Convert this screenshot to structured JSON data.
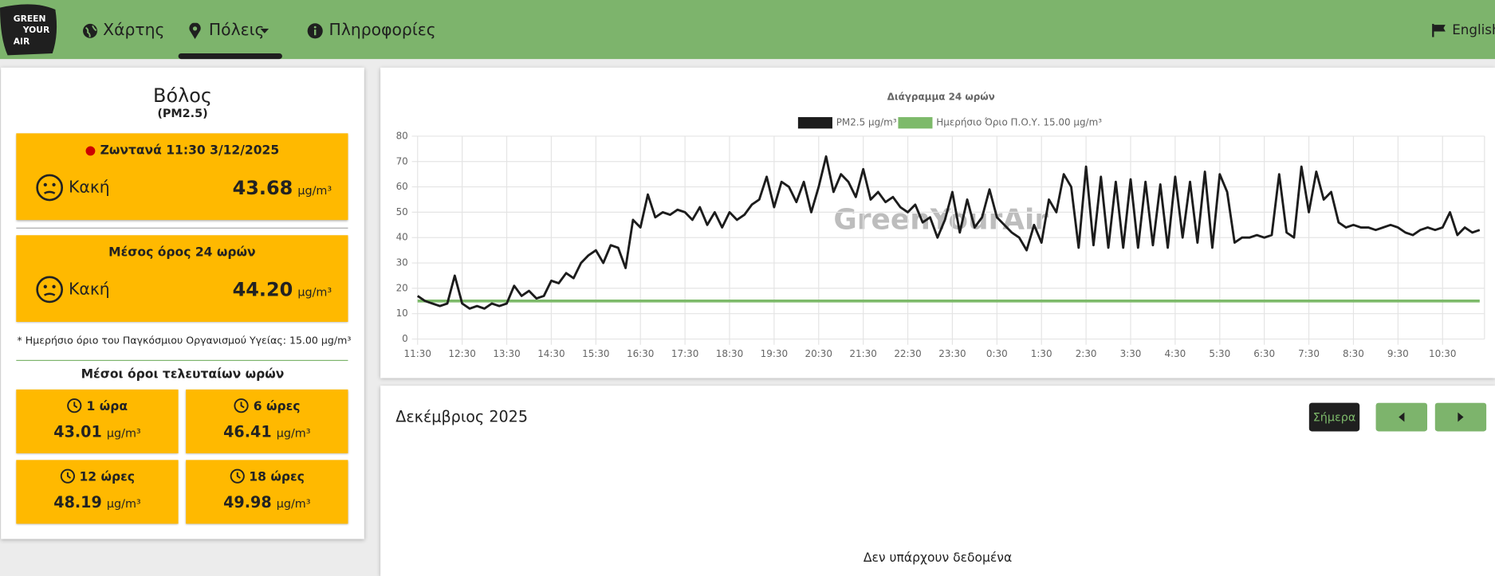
{
  "nav": {
    "logo": [
      "GREEN",
      "YOUR",
      "AIR"
    ],
    "items": [
      "Χάρτης",
      "Πόλεις",
      "Πληροφορίες"
    ],
    "language": "English"
  },
  "station": {
    "city": "Βόλος",
    "pollutant": "(PM2.5)",
    "unit": "μg/m³",
    "live": {
      "label": "Ζωντανά 11:30 3/12/2025",
      "status": "Κακή",
      "value": "43.68"
    },
    "average": {
      "label": "Μέσος όρος 24 ωρών",
      "status": "Κακή",
      "value": "44.20"
    },
    "note": "* Ημερήσιο όριο του Παγκόσμιου Οργανισμού Υγείας: 15.00 μg/m³",
    "recent_title": "Μέσοι όροι τελευταίων ωρών",
    "recent": [
      {
        "label": "1 ώρα",
        "value": "43.01"
      },
      {
        "label": "6 ώρες",
        "value": "46.41"
      },
      {
        "label": "12 ώρες",
        "value": "48.19"
      },
      {
        "label": "18 ώρες",
        "value": "49.98"
      }
    ]
  },
  "calendar": {
    "title": "Δεκέμβριος 2025",
    "today": "Σήμερα",
    "empty": "Δεν υπάρχουν δεδομένα"
  },
  "chart_data": {
    "type": "line",
    "title": "Διάγραμμα 24 ωρών",
    "watermark": "GreenYourAir",
    "categories": [
      "11:30",
      null,
      null,
      null,
      null,
      null,
      "12:30",
      null,
      null,
      null,
      null,
      null,
      "13:30",
      null,
      null,
      null,
      null,
      null,
      "14:30",
      null,
      null,
      null,
      null,
      null,
      "15:30",
      null,
      null,
      null,
      null,
      null,
      "16:30",
      null,
      null,
      null,
      null,
      null,
      "17:30",
      null,
      null,
      null,
      null,
      null,
      "18:30",
      null,
      null,
      null,
      null,
      null,
      "19:30",
      null,
      null,
      null,
      null,
      null,
      "20:30",
      null,
      null,
      null,
      null,
      null,
      "21:30",
      null,
      null,
      null,
      null,
      null,
      "22:30",
      null,
      null,
      null,
      null,
      null,
      "23:30",
      null,
      null,
      null,
      null,
      null,
      "0:30",
      null,
      null,
      null,
      null,
      null,
      "1:30",
      null,
      null,
      null,
      null,
      null,
      "2:30",
      null,
      null,
      null,
      null,
      null,
      "3:30",
      null,
      null,
      null,
      null,
      null,
      "4:30",
      null,
      null,
      null,
      null,
      null,
      "5:30",
      null,
      null,
      null,
      null,
      null,
      "6:30",
      null,
      null,
      null,
      null,
      null,
      "7:30",
      null,
      null,
      null,
      null,
      null,
      "8:30",
      null,
      null,
      null,
      null,
      null,
      "9:30",
      null,
      null,
      null,
      null,
      null,
      "10:30",
      null,
      null,
      null,
      null,
      null
    ],
    "series": [
      {
        "name": "PM2.5 μg/m³",
        "color": "#1c1c1c",
        "values": [
          17,
          15,
          14,
          13,
          14,
          25,
          14,
          12,
          13,
          12,
          14,
          13,
          14,
          21,
          17,
          19,
          16,
          17,
          23,
          22,
          26,
          24,
          30,
          33,
          35,
          30,
          37,
          36,
          28,
          47,
          44,
          57,
          48,
          50,
          49,
          51,
          50,
          47,
          52,
          45,
          50,
          44,
          50,
          47,
          49,
          53,
          55,
          64,
          52,
          62,
          60,
          54,
          62,
          50,
          60,
          72,
          58,
          65,
          62,
          56,
          67,
          55,
          58,
          54,
          56,
          52,
          50,
          53,
          46,
          48,
          40,
          47,
          58,
          42,
          55,
          44,
          48,
          59,
          48,
          45,
          42,
          40,
          35,
          45,
          38,
          55,
          50,
          65,
          60,
          36,
          68,
          37,
          64,
          36,
          62,
          36,
          63,
          36,
          62,
          37,
          61,
          36,
          64,
          40,
          62,
          38,
          66,
          36,
          65,
          58,
          38,
          40,
          40,
          41,
          40,
          41,
          65,
          42,
          40,
          68,
          50,
          66,
          55,
          58,
          46,
          44,
          45,
          44,
          44,
          43,
          44,
          45,
          44,
          42,
          41,
          43,
          44,
          43,
          44,
          50,
          41,
          44,
          42,
          43
        ]
      },
      {
        "name": "Ημερήσιο Όριο Π.Ο.Υ. 15.00 μg/m³",
        "color": "#7dba6a",
        "values": [
          15,
          15,
          15,
          15,
          15,
          15,
          15,
          15,
          15,
          15,
          15,
          15,
          15,
          15,
          15,
          15,
          15,
          15,
          15,
          15,
          15,
          15,
          15,
          15,
          15,
          15,
          15,
          15,
          15,
          15,
          15,
          15,
          15,
          15,
          15,
          15,
          15,
          15,
          15,
          15,
          15,
          15,
          15,
          15,
          15,
          15,
          15,
          15,
          15,
          15,
          15,
          15,
          15,
          15,
          15,
          15,
          15,
          15,
          15,
          15,
          15,
          15,
          15,
          15,
          15,
          15,
          15,
          15,
          15,
          15,
          15,
          15,
          15,
          15,
          15,
          15,
          15,
          15,
          15,
          15,
          15,
          15,
          15,
          15,
          15,
          15,
          15,
          15,
          15,
          15,
          15,
          15,
          15,
          15,
          15,
          15,
          15,
          15,
          15,
          15,
          15,
          15,
          15,
          15,
          15,
          15,
          15,
          15,
          15,
          15,
          15,
          15,
          15,
          15,
          15,
          15,
          15,
          15,
          15,
          15,
          15,
          15,
          15,
          15,
          15,
          15,
          15,
          15,
          15,
          15,
          15,
          15,
          15,
          15,
          15,
          15,
          15,
          15,
          15,
          15,
          15,
          15,
          15,
          15
        ]
      }
    ],
    "ylim": [
      0,
      80
    ],
    "yticks": [
      0,
      10,
      20,
      30,
      40,
      50,
      60,
      70,
      80
    ],
    "grid": true
  }
}
